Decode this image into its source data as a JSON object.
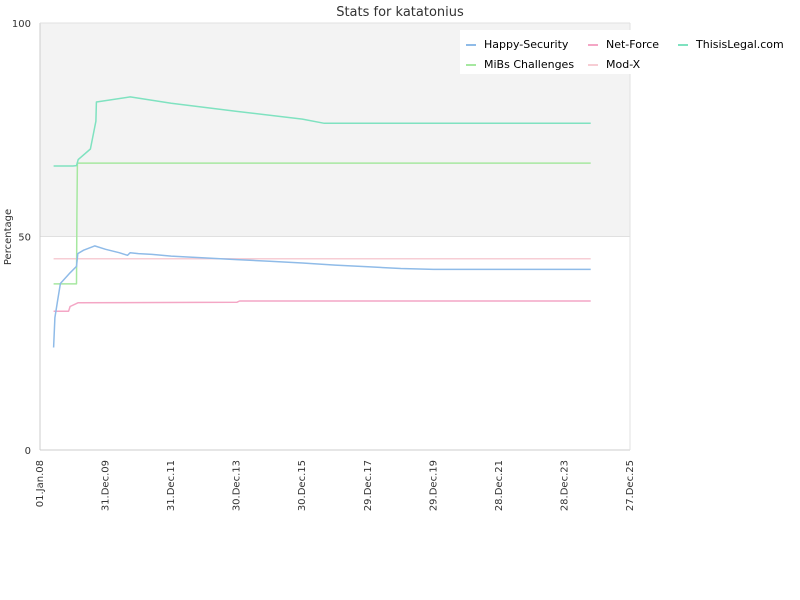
{
  "chart_data": {
    "type": "line",
    "title": "Stats for katatonius",
    "ylabel": "Percentage",
    "xlabel": "",
    "x_ticks": [
      "01.Jan.08",
      "31.Dec.09",
      "31.Dec.11",
      "30.Dec.13",
      "30.Dec.15",
      "29.Dec.17",
      "29.Dec.19",
      "28.Dec.21",
      "28.Dec.23",
      "27.Dec.25"
    ],
    "y_ticks": [
      "0",
      "50",
      "100"
    ],
    "xlim": [
      "2008-01-01",
      "2025-12-27"
    ],
    "ylim": [
      0,
      100
    ],
    "legend_position": "top-right",
    "series": [
      {
        "name": "Happy-Security",
        "color": "#8fbbe8",
        "points": [
          [
            "2008-06-01",
            24
          ],
          [
            "2008-06-15",
            31
          ],
          [
            "2008-07-15",
            35
          ],
          [
            "2008-08-15",
            39
          ],
          [
            "2008-12-01",
            41.5
          ],
          [
            "2009-02-10",
            43
          ],
          [
            "2009-02-25",
            46
          ],
          [
            "2009-05-01",
            46.8
          ],
          [
            "2009-09-01",
            47.8
          ],
          [
            "2010-01-01",
            47
          ],
          [
            "2010-06-01",
            46.2
          ],
          [
            "2010-09-01",
            45.6
          ],
          [
            "2010-10-01",
            46.2
          ],
          [
            "2011-01-01",
            46
          ],
          [
            "2011-06-01",
            45.8
          ],
          [
            "2012-01-01",
            45.4
          ],
          [
            "2013-01-01",
            45
          ],
          [
            "2014-01-01",
            44.6
          ],
          [
            "2015-01-01",
            44.2
          ],
          [
            "2016-01-01",
            43.8
          ],
          [
            "2017-01-01",
            43.3
          ],
          [
            "2018-01-01",
            42.9
          ],
          [
            "2019-01-01",
            42.5
          ],
          [
            "2020-01-01",
            42.3
          ],
          [
            "2024-10-15",
            42.3
          ]
        ]
      },
      {
        "name": "Net-Force",
        "color": "#f4a6c5",
        "points": [
          [
            "2008-06-01",
            32.5
          ],
          [
            "2008-11-15",
            32.5
          ],
          [
            "2008-12-01",
            33.6
          ],
          [
            "2009-03-01",
            34.5
          ],
          [
            "2014-01-01",
            34.6
          ],
          [
            "2014-02-01",
            34.9
          ],
          [
            "2024-10-15",
            34.9
          ]
        ]
      },
      {
        "name": "ThisisLegal.com",
        "color": "#7fe2c0",
        "points": [
          [
            "2008-06-01",
            66.5
          ],
          [
            "2009-01-01",
            66.5
          ],
          [
            "2009-02-10",
            66.6
          ],
          [
            "2009-03-01",
            68
          ],
          [
            "2009-07-15",
            70.5
          ],
          [
            "2009-09-15",
            77
          ],
          [
            "2009-09-20",
            81.5
          ],
          [
            "2010-10-01",
            82.7
          ],
          [
            "2012-01-01",
            81.2
          ],
          [
            "2014-01-01",
            79.3
          ],
          [
            "2016-01-01",
            77.5
          ],
          [
            "2016-09-01",
            76.5
          ],
          [
            "2024-10-15",
            76.5
          ]
        ]
      },
      {
        "name": "MiBs Challenges",
        "color": "#a6e8a0",
        "points": [
          [
            "2008-06-01",
            38.9
          ],
          [
            "2009-02-10",
            38.9
          ],
          [
            "2009-02-15",
            55
          ],
          [
            "2009-02-20",
            67.2
          ],
          [
            "2024-10-15",
            67.2
          ]
        ]
      },
      {
        "name": "Mod-X",
        "color": "#f7cdd4",
        "points": [
          [
            "2008-06-01",
            44.8
          ],
          [
            "2024-10-15",
            44.8
          ]
        ]
      }
    ]
  },
  "colors": {
    "upper_band": "#f3f3f3",
    "axis": "#cccccc",
    "gridline": "#e0e0e0"
  }
}
